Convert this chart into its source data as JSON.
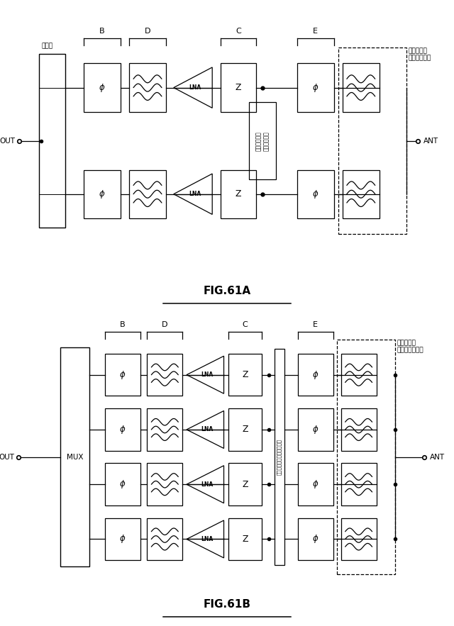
{
  "bg_color": "#ffffff",
  "fig61a": {
    "title": "FIG.61A",
    "label_combiner": "結合器",
    "label_filter": "フィルタ／\nダイプレクサ",
    "label_switch": "スイッチング\nネットワーク",
    "label_out": "OUT",
    "label_ant": "ANT"
  },
  "fig61b": {
    "title": "FIG.61B",
    "label_filter": "フィルタ／\nマルチプレクサ",
    "label_switch": "スイッチングネットワーク",
    "label_out": "OUT",
    "label_mux": "MUX",
    "label_ant": "ANT"
  }
}
